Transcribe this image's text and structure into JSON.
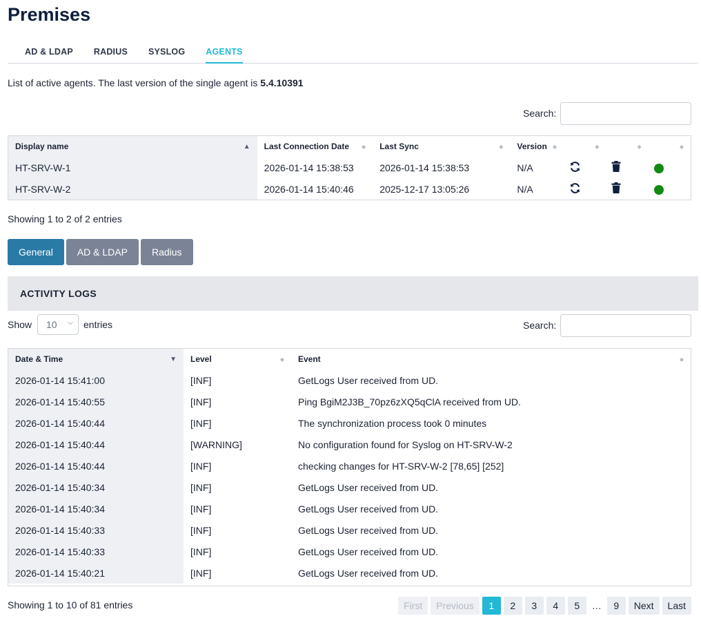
{
  "page_title": "Premises",
  "tabs": [
    {
      "label": "AD & LDAP",
      "active": false
    },
    {
      "label": "RADIUS",
      "active": false
    },
    {
      "label": "SYSLOG",
      "active": false
    },
    {
      "label": "AGENTS",
      "active": true
    }
  ],
  "intro": {
    "text": "List of active agents. The last version of the single agent is ",
    "version": "5.4.10391"
  },
  "search_label": "Search:",
  "agents_table": {
    "headers": [
      "Display name",
      "Last Connection Date",
      "Last Sync",
      "Version"
    ],
    "rows": [
      {
        "name": "HT-SRV-W-1",
        "last_connection": "2026-01-14 15:38:53",
        "last_sync": "2026-01-14 15:38:53",
        "version": "N/A",
        "status_color": "#108a10"
      },
      {
        "name": "HT-SRV-W-2",
        "last_connection": "2026-01-14 15:40:46",
        "last_sync": "2025-12-17 13:05:26",
        "version": "N/A",
        "status_color": "#108a10"
      }
    ],
    "info": "Showing 1 to 2 of 2 entries"
  },
  "log_buttons": [
    {
      "label": "General",
      "active": true
    },
    {
      "label": "AD & LDAP",
      "active": false
    },
    {
      "label": "Radius",
      "active": false
    }
  ],
  "activity_logs": {
    "title": "ACTIVITY LOGS",
    "show_label": "Show",
    "entries_label": "entries",
    "page_size": "10",
    "headers": [
      "Date & Time",
      "Level",
      "Event"
    ],
    "rows": [
      {
        "datetime": "2026-01-14 15:41:00",
        "level": "[INF]",
        "event": "GetLogs User received from UD."
      },
      {
        "datetime": "2026-01-14 15:40:55",
        "level": "[INF]",
        "event": "Ping BgiM2J3B_70pz6zXQ5qClA received from UD."
      },
      {
        "datetime": "2026-01-14 15:40:44",
        "level": "[INF]",
        "event": "The synchronization process took 0 minutes"
      },
      {
        "datetime": "2026-01-14 15:40:44",
        "level": "[WARNING]",
        "event": "No configuration found for Syslog on HT-SRV-W-2"
      },
      {
        "datetime": "2026-01-14 15:40:44",
        "level": "[INF]",
        "event": "checking changes for HT-SRV-W-2 [78,65] [252]"
      },
      {
        "datetime": "2026-01-14 15:40:34",
        "level": "[INF]",
        "event": "GetLogs User received from UD."
      },
      {
        "datetime": "2026-01-14 15:40:34",
        "level": "[INF]",
        "event": "GetLogs User received from UD."
      },
      {
        "datetime": "2026-01-14 15:40:33",
        "level": "[INF]",
        "event": "GetLogs User received from UD."
      },
      {
        "datetime": "2026-01-14 15:40:33",
        "level": "[INF]",
        "event": "GetLogs User received from UD."
      },
      {
        "datetime": "2026-01-14 15:40:21",
        "level": "[INF]",
        "event": "GetLogs User received from UD."
      }
    ],
    "info": "Showing 1 to 10 of 81 entries"
  },
  "pagination": {
    "first": "First",
    "previous": "Previous",
    "pages": [
      "1",
      "2",
      "3",
      "4",
      "5"
    ],
    "ellipsis": "…",
    "last_page": "9",
    "next": "Next",
    "last": "Last",
    "current": "1"
  },
  "colors": {
    "accent": "#23b8d6",
    "primary_button": "#2a7aa6",
    "secondary_button": "#7b8496",
    "status_ok": "#108a10"
  }
}
